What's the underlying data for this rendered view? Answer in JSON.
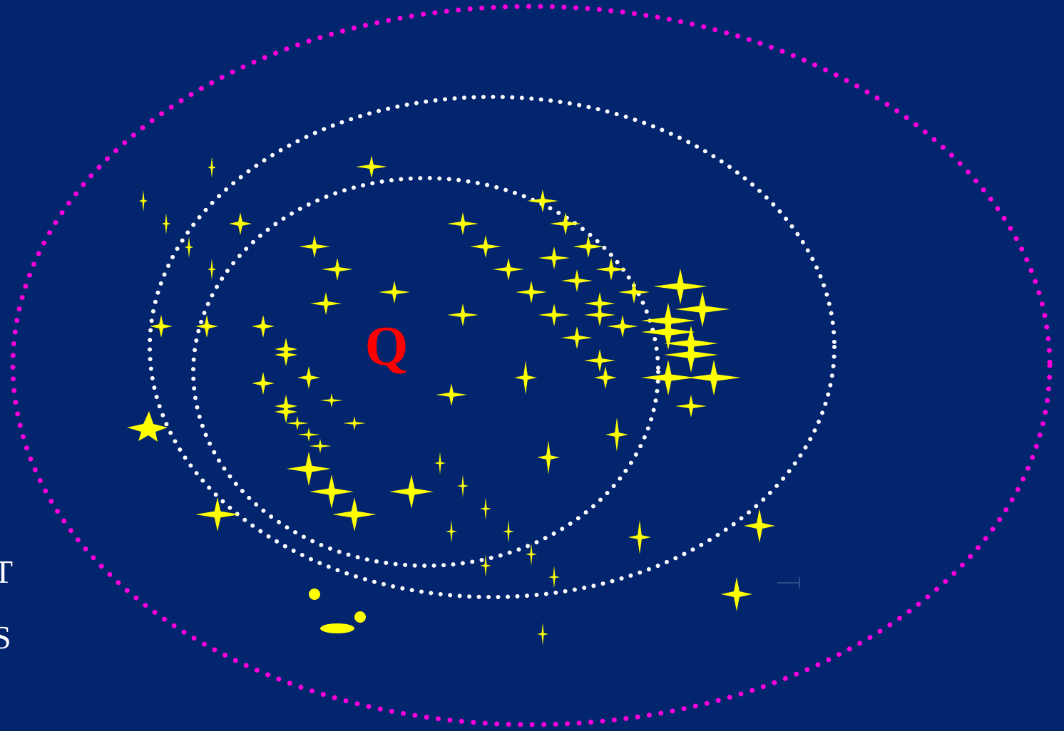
{
  "colors": {
    "background": "#02256e",
    "star": "#ffff00",
    "outer_ring": "#ff00dd",
    "inner_rings": "#ffffff",
    "label": "#ff0000"
  },
  "center_label": "Q",
  "edge_text": [
    "T",
    "S"
  ],
  "icons": {
    "stars": "four-point-star-icon",
    "big_star": "five-point-star-icon",
    "blobs": "yellow-blob-icon"
  }
}
